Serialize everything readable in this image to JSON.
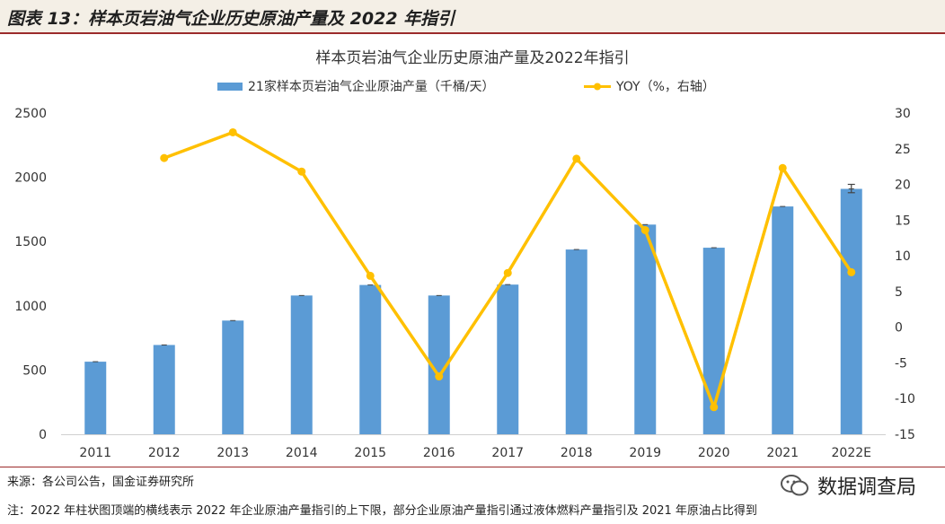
{
  "figure_title": "图表 13：样本页岩油气企业历史原油产量及 2022 年指引",
  "source": "来源：各公司公告，国金证券研究所",
  "note": "注：2022 年柱状图顶端的横线表示 2022 年企业原油产量指引的上下限，部分企业原油产量指引通过液体燃料产量指引及 2021 年原油占比得到",
  "watermark": {
    "text": "数据调查局",
    "icon": "wechat-icon"
  },
  "colors": {
    "bar": "#5b9bd5",
    "line": "#ffc000",
    "title_rule": "#9b2b2b"
  },
  "chart_data": {
    "type": "bar+line",
    "title": "样本页岩油气企业历史原油产量及2022年指引",
    "categories": [
      "2011",
      "2012",
      "2013",
      "2014",
      "2015",
      "2016",
      "2017",
      "2018",
      "2019",
      "2020",
      "2021",
      "2022E"
    ],
    "series": [
      {
        "name": "21家样本页岩油气企业原油产量（千桶/天）",
        "type": "bar",
        "axis": "left",
        "values": [
          565,
          695,
          885,
          1080,
          1162,
          1080,
          1165,
          1438,
          1632,
          1452,
          1773,
          1910
        ],
        "error_2022E": [
          1880,
          1945
        ]
      },
      {
        "name": "YOY（%，右轴）",
        "type": "line",
        "axis": "right",
        "values": [
          null,
          23.7,
          27.3,
          21.8,
          7.2,
          -6.9,
          7.6,
          23.6,
          13.6,
          -11.2,
          22.3,
          7.7
        ]
      }
    ],
    "y_left": {
      "min": 0,
      "max": 2500,
      "ticks": [
        0,
        500,
        1000,
        1500,
        2000,
        2500
      ]
    },
    "y_right": {
      "min": -15,
      "max": 30,
      "ticks": [
        -15,
        -10,
        -5,
        0,
        5,
        10,
        15,
        20,
        25,
        30
      ]
    },
    "legend_position": "top",
    "grid": false
  }
}
